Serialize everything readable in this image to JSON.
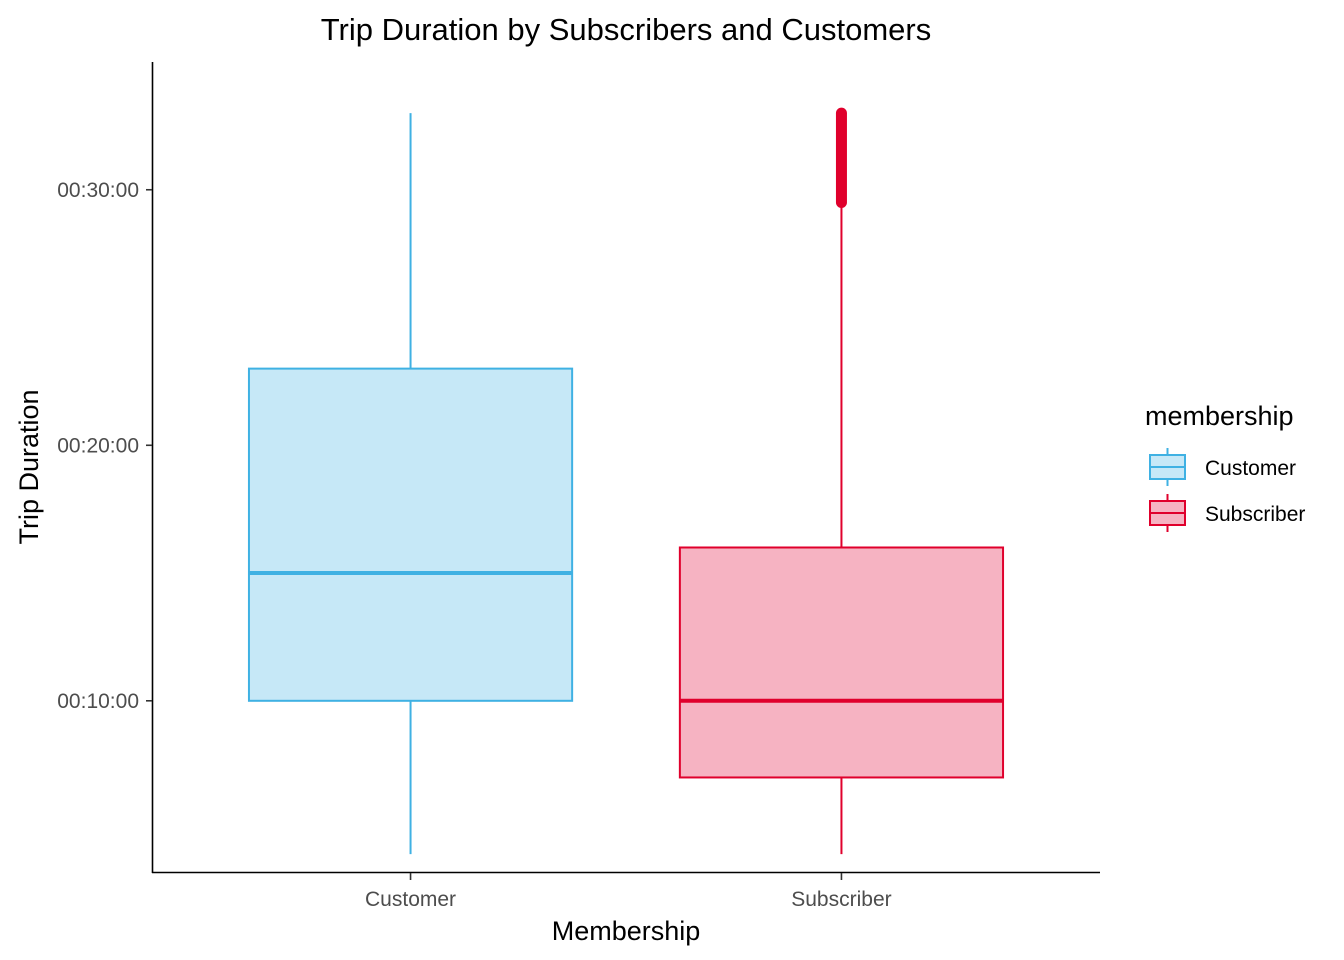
{
  "chart_data": {
    "type": "box",
    "title": "Trip Duration by Subscribers and Customers",
    "xlabel": "Membership",
    "ylabel": "Trip Duration",
    "categories": [
      "Customer",
      "Subscriber"
    ],
    "y_unit": "minutes",
    "ylim": [
      3.3,
      35.0
    ],
    "y_ticks": [
      {
        "value": 10,
        "label": "00:10:00"
      },
      {
        "value": 20,
        "label": "00:20:00"
      },
      {
        "value": 30,
        "label": "00:30:00"
      }
    ],
    "series": [
      {
        "name": "Customer",
        "whisker_low": 4.0,
        "q1": 10.0,
        "median": 15.0,
        "q3": 23.0,
        "whisker_high": 33.0,
        "outliers_range": null,
        "line_color": "#3FB1E3",
        "fill_color": "#C6E8F7"
      },
      {
        "name": "Subscriber",
        "whisker_low": 4.0,
        "q1": 7.0,
        "median": 10.0,
        "q3": 16.0,
        "whisker_high": 29.5,
        "outliers_range": [
          29.5,
          33.0
        ],
        "line_color": "#E0002C",
        "fill_color": "#F6B3C2"
      }
    ],
    "grid": false,
    "legend": {
      "title": "membership",
      "position": "right",
      "entries": [
        "Customer",
        "Subscriber"
      ]
    }
  }
}
